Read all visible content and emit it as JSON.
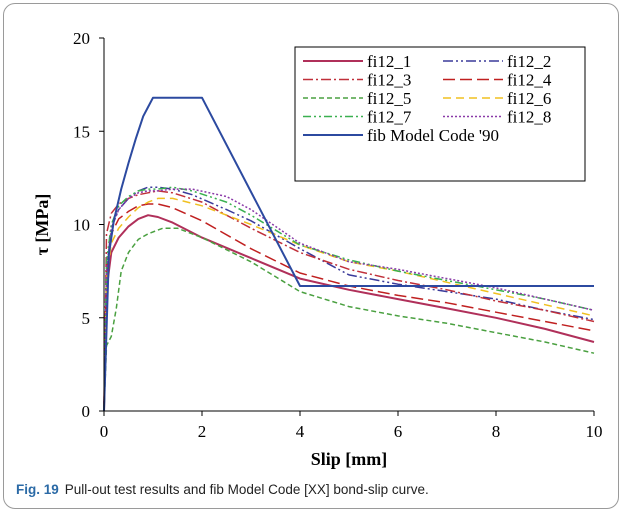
{
  "caption": {
    "label": "Fig. 19",
    "text": "Pull-out test results and fib Model Code [XX] bond-slip curve."
  },
  "chart_data": {
    "type": "line",
    "xlabel": "Slip [mm]",
    "ylabel": "τ [MPa]",
    "xlim": [
      0,
      10
    ],
    "ylim": [
      0,
      20
    ],
    "xticks": [
      "0",
      "2",
      "4",
      "6",
      "8",
      "10"
    ],
    "yticks": [
      "0",
      "5",
      "10",
      "15",
      "20"
    ],
    "grid": false,
    "legend_position": "top-right",
    "series": [
      {
        "name": "fi12_1",
        "color": "#b0305a",
        "dash": "",
        "width": 2,
        "x": [
          0,
          0.05,
          0.15,
          0.3,
          0.5,
          0.7,
          0.9,
          1.1,
          1.4,
          2,
          3,
          4,
          5,
          6,
          7,
          8,
          9,
          10
        ],
        "y": [
          0,
          6.5,
          8.5,
          9.3,
          9.9,
          10.3,
          10.5,
          10.4,
          10.1,
          9.3,
          8.2,
          7.1,
          6.5,
          6.0,
          5.5,
          5.0,
          4.4,
          3.7
        ]
      },
      {
        "name": "fi12_2",
        "color": "#3a3a9a",
        "dash": "10,3,2,3,2,3",
        "width": 1.5,
        "x": [
          0,
          0.05,
          0.15,
          0.3,
          0.5,
          0.7,
          0.9,
          1.1,
          1.4,
          1.8,
          2.5,
          3,
          4,
          5,
          6,
          7,
          8,
          9,
          10
        ],
        "y": [
          0,
          7.5,
          9.8,
          10.8,
          11.4,
          11.8,
          12.0,
          12.0,
          11.9,
          11.6,
          10.8,
          10.2,
          8.7,
          7.3,
          6.8,
          6.4,
          6.0,
          5.4,
          4.9
        ]
      },
      {
        "name": "fi12_3",
        "color": "#c0303a",
        "dash": "10,3,2,3",
        "width": 1.5,
        "x": [
          0,
          0.05,
          0.15,
          0.3,
          0.5,
          0.7,
          0.9,
          1.1,
          1.4,
          2,
          3,
          4,
          5,
          6,
          7,
          8,
          9,
          10
        ],
        "y": [
          0,
          9.5,
          10.6,
          11.1,
          11.4,
          11.6,
          11.7,
          11.8,
          11.7,
          11.2,
          9.8,
          8.5,
          7.6,
          7.0,
          6.5,
          5.9,
          5.4,
          4.8
        ]
      },
      {
        "name": "fi12_4",
        "color": "#c02020",
        "dash": "12,5",
        "width": 1.5,
        "x": [
          0,
          0.05,
          0.15,
          0.3,
          0.5,
          0.7,
          0.9,
          1.1,
          1.4,
          2,
          3,
          4,
          5,
          6,
          7,
          8,
          9,
          10
        ],
        "y": [
          0,
          7.5,
          9.5,
          10.3,
          10.7,
          11.0,
          11.1,
          11.1,
          10.9,
          10.2,
          8.7,
          7.4,
          6.7,
          6.2,
          5.8,
          5.3,
          4.8,
          4.3
        ]
      },
      {
        "name": "fi12_5",
        "color": "#4aa040",
        "dash": "5,3",
        "width": 1.5,
        "x": [
          0,
          0.05,
          0.15,
          0.25,
          0.35,
          0.5,
          0.7,
          0.9,
          1.2,
          1.5,
          2,
          3,
          4,
          5,
          6,
          7,
          8,
          9,
          10
        ],
        "y": [
          0,
          3.5,
          4.0,
          5.5,
          7.5,
          8.5,
          9.2,
          9.5,
          9.8,
          9.8,
          9.3,
          8.0,
          6.4,
          5.6,
          5.1,
          4.7,
          4.2,
          3.7,
          3.1
        ]
      },
      {
        "name": "fi12_6",
        "color": "#f0c020",
        "dash": "8,5",
        "width": 1.5,
        "x": [
          0,
          0.05,
          0.15,
          0.3,
          0.5,
          0.7,
          0.9,
          1.1,
          1.4,
          2,
          3,
          4,
          5,
          6,
          7,
          8,
          9,
          10
        ],
        "y": [
          0,
          7.0,
          9.0,
          9.8,
          10.4,
          10.9,
          11.2,
          11.4,
          11.4,
          11.0,
          10.0,
          8.9,
          8.0,
          7.5,
          6.9,
          6.3,
          5.7,
          5.1
        ]
      },
      {
        "name": "fi12_7",
        "color": "#3ab050",
        "dash": "8,3,2,3,2,3",
        "width": 1.5,
        "x": [
          0,
          0.05,
          0.15,
          0.3,
          0.5,
          0.7,
          0.9,
          1.1,
          1.4,
          1.8,
          2.5,
          3,
          4,
          5,
          6,
          7,
          8,
          9,
          10
        ],
        "y": [
          0,
          8.0,
          10.0,
          11.0,
          11.5,
          11.8,
          11.9,
          11.9,
          12.0,
          11.8,
          11.2,
          10.5,
          8.9,
          8.1,
          7.5,
          7.0,
          6.5,
          6.0,
          5.4
        ]
      },
      {
        "name": "fi12_8",
        "color": "#8a3aa8",
        "dash": "2,2",
        "width": 1.5,
        "x": [
          0,
          0.05,
          0.15,
          0.3,
          0.5,
          0.7,
          0.9,
          1.1,
          1.4,
          1.8,
          2.5,
          3,
          4,
          5,
          6,
          7,
          8,
          9,
          10
        ],
        "y": [
          0,
          7.5,
          9.8,
          10.8,
          11.4,
          11.7,
          11.8,
          11.8,
          11.9,
          11.9,
          11.5,
          10.8,
          9.0,
          8.0,
          7.6,
          7.1,
          6.6,
          6.0,
          5.4
        ]
      },
      {
        "name": "fib Model Code '90",
        "color": "#2c4aa0",
        "dash": "",
        "width": 2,
        "x": [
          0,
          0.1,
          0.2,
          0.35,
          0.5,
          0.65,
          0.8,
          0.9,
          1.0,
          2.0,
          4.0,
          10.0
        ],
        "y": [
          0,
          8.4,
          10.2,
          11.9,
          13.3,
          14.6,
          15.8,
          16.3,
          16.8,
          16.8,
          6.7,
          6.7
        ]
      }
    ]
  }
}
